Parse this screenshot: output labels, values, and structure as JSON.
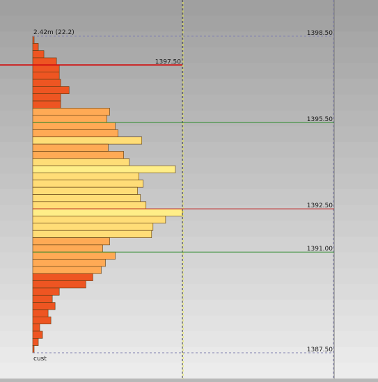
{
  "chart_data": {
    "type": "bar",
    "orientation": "horizontal",
    "title": "2.42m (22.2)",
    "footer_label": "cust",
    "y_range": [
      1387.5,
      1398.5
    ],
    "price_labels": [
      {
        "price": 1398.5,
        "text": "1398.50"
      },
      {
        "price": 1397.5,
        "text": "1397.50"
      },
      {
        "price": 1395.5,
        "text": "1395.50"
      },
      {
        "price": 1392.5,
        "text": "1392.50"
      },
      {
        "price": 1391.0,
        "text": "1391.00"
      },
      {
        "price": 1387.5,
        "text": "1387.50"
      }
    ],
    "lines": [
      {
        "price": 1397.5,
        "color": "#d01010",
        "label": "1397.50"
      },
      {
        "price": 1395.5,
        "color": "#2e8b2e",
        "label": "1395.50"
      },
      {
        "price": 1392.5,
        "color": "#c02020",
        "label": "1392.50"
      },
      {
        "price": 1391.0,
        "color": "#2e8b2e",
        "label": "1391.00"
      }
    ],
    "bars_top_to_bottom": [
      2,
      8,
      16,
      34,
      38,
      38,
      40,
      52,
      40,
      40,
      110,
      106,
      118,
      122,
      156,
      108,
      130,
      138,
      204,
      152,
      158,
      150,
      154,
      162,
      214,
      190,
      172,
      170,
      110,
      100,
      118,
      104,
      98,
      86,
      76,
      38,
      28,
      32,
      22,
      26,
      10,
      14,
      8,
      2
    ],
    "bar_colors": {
      "low": "#ee5522",
      "mid": "#ffaa55",
      "high": "#ffdd77",
      "peak": "#ffee88"
    }
  }
}
